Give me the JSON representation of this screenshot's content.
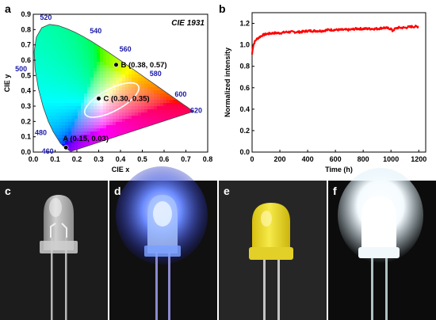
{
  "panels": {
    "a": {
      "letter": "a"
    },
    "b": {
      "letter": "b"
    },
    "c": {
      "letter": "c"
    },
    "d": {
      "letter": "d"
    },
    "e": {
      "letter": "e"
    },
    "f": {
      "letter": "f"
    }
  },
  "chart_data": [
    {
      "type": "scatter",
      "title": "CIE 1931",
      "xlabel": "CIE x",
      "ylabel": "CIE y",
      "xlim": [
        0.0,
        0.8
      ],
      "ylim": [
        0.0,
        0.9
      ],
      "xticks": [
        "0.0",
        "0.1",
        "0.2",
        "0.3",
        "0.4",
        "0.5",
        "0.6",
        "0.7",
        "0.8"
      ],
      "yticks": [
        "0.0",
        "0.1",
        "0.2",
        "0.3",
        "0.4",
        "0.5",
        "0.6",
        "0.7",
        "0.8",
        "0.9"
      ],
      "points": [
        {
          "label": "A (0.15, 0.03)",
          "x": 0.15,
          "y": 0.03
        },
        {
          "label": "B (0.38, 0.57)",
          "x": 0.38,
          "y": 0.57
        },
        {
          "label": "C (0.30, 0.35)",
          "x": 0.3,
          "y": 0.35
        }
      ],
      "wavelength_labels": [
        {
          "text": "520",
          "x": 0.074,
          "y": 0.834
        },
        {
          "text": "540",
          "x": 0.23,
          "y": 0.754
        },
        {
          "text": "560",
          "x": 0.373,
          "y": 0.625
        },
        {
          "text": "580",
          "x": 0.512,
          "y": 0.487
        },
        {
          "text": "600",
          "x": 0.627,
          "y": 0.373
        },
        {
          "text": "620",
          "x": 0.691,
          "y": 0.308
        },
        {
          "text": "500",
          "x": 0.008,
          "y": 0.538
        },
        {
          "text": "480",
          "x": 0.091,
          "y": 0.133
        },
        {
          "text": "460",
          "x": 0.144,
          "y": 0.03
        }
      ]
    },
    {
      "type": "line",
      "xlabel": "Time (h)",
      "ylabel": "Normalized intensity",
      "xlim": [
        0,
        1250
      ],
      "ylim": [
        0.0,
        1.3
      ],
      "xticks": [
        "0",
        "200",
        "400",
        "600",
        "800",
        "1000",
        "1200"
      ],
      "yticks": [
        "0.0",
        "0.2",
        "0.4",
        "0.6",
        "0.8",
        "1.0",
        "1.2"
      ],
      "series_color": "#ff0000",
      "x": [
        0,
        5,
        10,
        20,
        30,
        50,
        75,
        100,
        150,
        200,
        250,
        300,
        350,
        400,
        450,
        500,
        550,
        600,
        650,
        700,
        750,
        800,
        850,
        900,
        950,
        1000,
        1010,
        1030,
        1050,
        1100,
        1150,
        1200
      ],
      "y": [
        0.91,
        0.97,
        1.0,
        1.03,
        1.05,
        1.07,
        1.09,
        1.1,
        1.11,
        1.11,
        1.12,
        1.12,
        1.12,
        1.13,
        1.13,
        1.13,
        1.14,
        1.14,
        1.14,
        1.14,
        1.15,
        1.15,
        1.15,
        1.15,
        1.16,
        1.15,
        1.13,
        1.15,
        1.16,
        1.16,
        1.17,
        1.17
      ]
    }
  ],
  "colors": {
    "photo_c_bg": "#1c1c1c",
    "photo_d_bg": "#101010",
    "photo_e_bg": "#262626",
    "photo_f_bg": "#0c0c0c"
  }
}
